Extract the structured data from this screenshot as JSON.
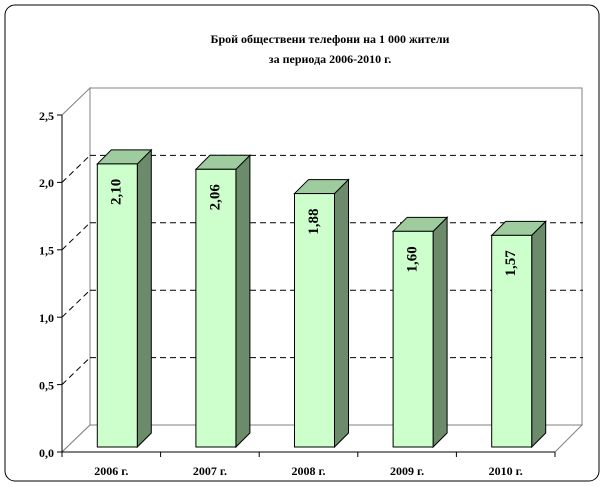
{
  "chart_data": {
    "type": "bar3d",
    "title": [
      "Брой обществени телефони на 1 000 жители",
      "за периода 2006-2010 г."
    ],
    "categories": [
      "2006 г.",
      "2007 г.",
      "2008 г.",
      "2009 г.",
      "2010 г."
    ],
    "values": [
      2.1,
      2.06,
      1.88,
      1.6,
      1.57
    ],
    "value_labels": [
      "2,10",
      "2,06",
      "1,88",
      "1,60",
      "1,57"
    ],
    "color": "#ccffcc",
    "ylim": [
      0,
      2.5
    ],
    "yticks": [
      {
        "value": 0,
        "label": "0,0"
      },
      {
        "value": 0.5,
        "label": "0,5"
      },
      {
        "value": 1,
        "label": "1,0"
      },
      {
        "value": 1.5,
        "label": "1,5"
      },
      {
        "value": 2,
        "label": "2,0"
      },
      {
        "value": 2.5,
        "label": "2,5"
      }
    ],
    "grid": true
  }
}
